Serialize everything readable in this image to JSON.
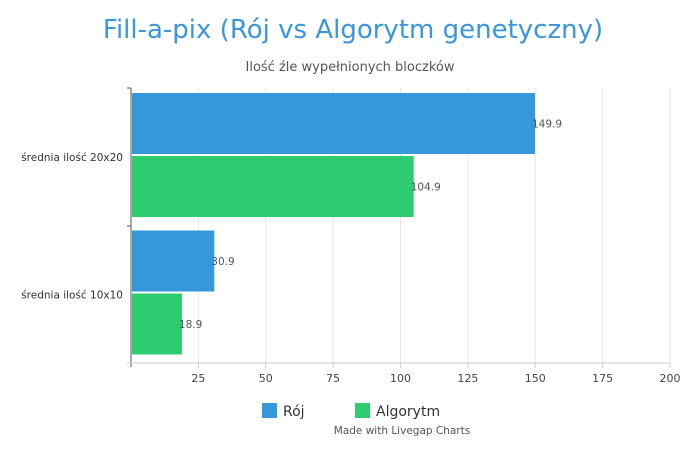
{
  "chart_data": {
    "type": "bar",
    "orientation": "horizontal",
    "title": "Fill-a-pix (Rój vs Algorytm genetyczny)",
    "subtitle": "Ilość źle wypełnionych bloczków",
    "categories": [
      "średnia ilość 20x20",
      "średnia ilość 10x10"
    ],
    "series": [
      {
        "name": "Rój",
        "values": [
          149.9,
          30.9
        ],
        "color": "#3498db"
      },
      {
        "name": "Algorytm",
        "values": [
          104.9,
          18.9
        ],
        "color": "#2ecc71"
      }
    ],
    "xlim": [
      0,
      200
    ],
    "xticks": [
      25,
      50,
      75,
      100,
      125,
      150,
      175,
      200
    ],
    "grid": true,
    "legend": "bottom-center"
  },
  "credit": "Made with Livegap Charts"
}
